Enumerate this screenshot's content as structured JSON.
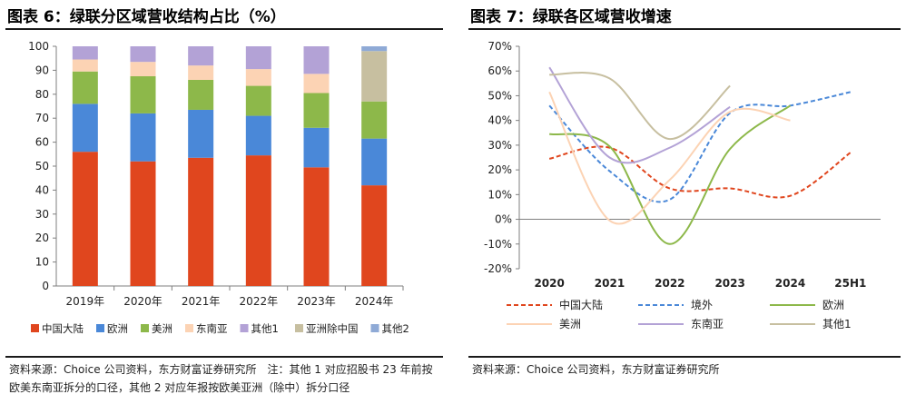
{
  "left_panel": {
    "title": "图表 6：绿联分区域营收结构占比（%）",
    "source": "资料来源：Choice 公司资料，东方财富证券研究所　注：其他 1 对应招股书 23 年前按欧美东南亚拆分的口径，其他 2 对应年报按欧美亚洲（除中）拆分口径"
  },
  "right_panel": {
    "title": "图表 7：绿联各区域营收增速",
    "source": "资料来源：Choice 公司资料，东方财富证券研究所"
  },
  "chart_data": [
    {
      "type": "bar",
      "stacked": true,
      "categories": [
        "2019年",
        "2020年",
        "2021年",
        "2022年",
        "2023年",
        "2024年"
      ],
      "ylim": [
        0,
        100
      ],
      "yticks": [
        0,
        10,
        20,
        30,
        40,
        50,
        60,
        70,
        80,
        90,
        100
      ],
      "legend_position": "bottom",
      "series": [
        {
          "name": "中国大陆",
          "color": "#E0461E",
          "values": [
            56,
            52,
            53.5,
            54.5,
            49.5,
            42
          ]
        },
        {
          "name": "欧洲",
          "color": "#4A88D8",
          "values": [
            20,
            20,
            20,
            16.5,
            16.5,
            19.5
          ]
        },
        {
          "name": "美洲",
          "color": "#8DB84A",
          "values": [
            13.5,
            15.5,
            12.5,
            12.5,
            14.5,
            15.5
          ]
        },
        {
          "name": "东南亚",
          "color": "#FCD3B4",
          "values": [
            5,
            6,
            6,
            7,
            8,
            0
          ]
        },
        {
          "name": "其他1",
          "color": "#B3A2D6",
          "values": [
            5.5,
            6.5,
            8,
            9.5,
            11.5,
            0
          ]
        },
        {
          "name": "亚洲除中国",
          "color": "#C7BFA0",
          "values": [
            0,
            0,
            0,
            0,
            0,
            21
          ]
        },
        {
          "name": "其他2",
          "color": "#8FAAD6",
          "values": [
            0,
            0,
            0,
            0,
            0,
            2
          ]
        }
      ]
    },
    {
      "type": "line",
      "categories": [
        "2020",
        "2021",
        "2022",
        "2023",
        "2024",
        "25H1"
      ],
      "ylim": [
        -20,
        70
      ],
      "yticks": [
        "-20%",
        "-10%",
        "0%",
        "10%",
        "20%",
        "30%",
        "40%",
        "50%",
        "60%",
        "70%"
      ],
      "yunit": "%",
      "legend_position": "bottom",
      "series": [
        {
          "name": "中国大陆",
          "color": "#E0461E",
          "dash": true,
          "values": [
            24.5,
            29,
            12.5,
            12.5,
            9.5,
            27
          ]
        },
        {
          "name": "境外",
          "color": "#4A88D8",
          "dash": true,
          "values": [
            46,
            19.5,
            8,
            43,
            46,
            51.5
          ]
        },
        {
          "name": "欧洲",
          "color": "#8DB84A",
          "dash": false,
          "values": [
            34.5,
            29.5,
            -10,
            28.5,
            46,
            null
          ]
        },
        {
          "name": "美洲",
          "color": "#FCD3B4",
          "dash": false,
          "values": [
            51.5,
            -0.5,
            16,
            43.5,
            40,
            null
          ]
        },
        {
          "name": "东南亚",
          "color": "#B3A2D6",
          "dash": false,
          "values": [
            61.5,
            25,
            29,
            45.5,
            null,
            null
          ]
        },
        {
          "name": "其他1",
          "color": "#C7BFA0",
          "dash": false,
          "values": [
            58.5,
            57,
            32.5,
            54,
            null,
            null
          ]
        }
      ]
    }
  ]
}
